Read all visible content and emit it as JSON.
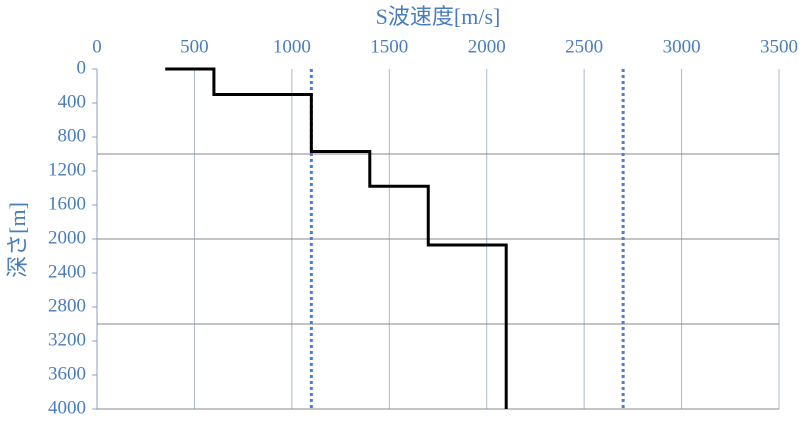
{
  "chart_data": {
    "type": "line",
    "x_label": "S波速度[m/s]",
    "y_label": "深さ[m]",
    "series": [
      {
        "color": "#000000",
        "x": [
          350,
          600,
          600,
          1100,
          1100,
          1400,
          1400,
          1700,
          1700,
          2100,
          2100
        ],
        "values": [
          0,
          0,
          300,
          300,
          970,
          970,
          1380,
          1380,
          2070,
          2070,
          4000
        ]
      }
    ],
    "vlines": [
      1100,
      2700
    ],
    "vline_color": "#4a7fd4",
    "xlim": [
      0,
      3500
    ],
    "xticks": [
      0,
      500,
      1000,
      1500,
      2000,
      2500,
      3000,
      3500
    ],
    "ylim": [
      0,
      4000
    ],
    "yticks": [
      0,
      400,
      800,
      1200,
      1600,
      2000,
      2400,
      2800,
      3200,
      3600,
      4000
    ],
    "ygrid": [
      1000,
      2000,
      3000,
      4000
    ],
    "y_inverted": true,
    "x_axis_position": "top"
  }
}
